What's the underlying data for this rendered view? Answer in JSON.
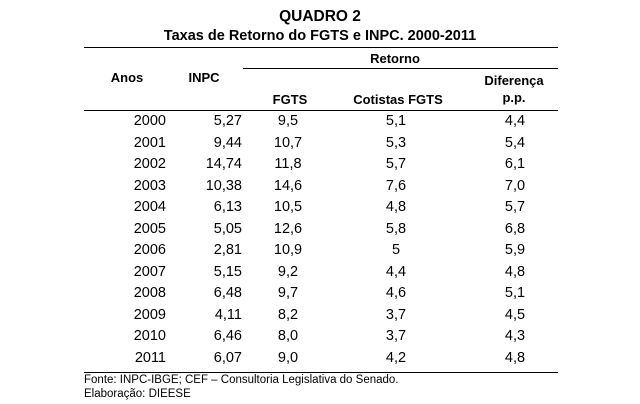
{
  "title": "QUADRO 2",
  "subtitle": "Taxas de Retorno do FGTS e INPC. 2000-2011",
  "headers": {
    "anos": "Anos",
    "inpc": "INPC",
    "retorno": "Retorno",
    "fgts": "FGTS",
    "cotistas": "Cotistas FGTS",
    "diferenca_line1": "Diferença",
    "diferenca_line2": "p.p."
  },
  "rows": [
    {
      "ano": "2000",
      "inpc": "5,27",
      "fgts": "9,5",
      "cotistas": "5,1",
      "diferenca": "4,4"
    },
    {
      "ano": "2001",
      "inpc": "9,44",
      "fgts": "10,7",
      "cotistas": "5,3",
      "diferenca": "5,4"
    },
    {
      "ano": "2002",
      "inpc": "14,74",
      "fgts": "11,8",
      "cotistas": "5,7",
      "diferenca": "6,1"
    },
    {
      "ano": "2003",
      "inpc": "10,38",
      "fgts": "14,6",
      "cotistas": "7,6",
      "diferenca": "7,0"
    },
    {
      "ano": "2004",
      "inpc": "6,13",
      "fgts": "10,5",
      "cotistas": "4,8",
      "diferenca": "5,7"
    },
    {
      "ano": "2005",
      "inpc": "5,05",
      "fgts": "12,6",
      "cotistas": "5,8",
      "diferenca": "6,8"
    },
    {
      "ano": "2006",
      "inpc": "2,81",
      "fgts": "10,9",
      "cotistas": "5",
      "diferenca": "5,9"
    },
    {
      "ano": "2007",
      "inpc": "5,15",
      "fgts": "9,2",
      "cotistas": "4,4",
      "diferenca": "4,8"
    },
    {
      "ano": "2008",
      "inpc": "6,48",
      "fgts": "9,7",
      "cotistas": "4,6",
      "diferenca": "5,1"
    },
    {
      "ano": "2009",
      "inpc": "4,11",
      "fgts": "8,2",
      "cotistas": "3,7",
      "diferenca": "4,5"
    },
    {
      "ano": "2010",
      "inpc": "6,46",
      "fgts": "8,0",
      "cotistas": "3,7",
      "diferenca": "4,3"
    },
    {
      "ano": "2011",
      "inpc": "6,07",
      "fgts": "9,0",
      "cotistas": "4,2",
      "diferenca": "4,8"
    }
  ],
  "footer": {
    "fonte": "Fonte: INPC-IBGE; CEF – Consultoria Legislativa do Senado.",
    "elaboracao": "Elaboração: DIEESE"
  }
}
